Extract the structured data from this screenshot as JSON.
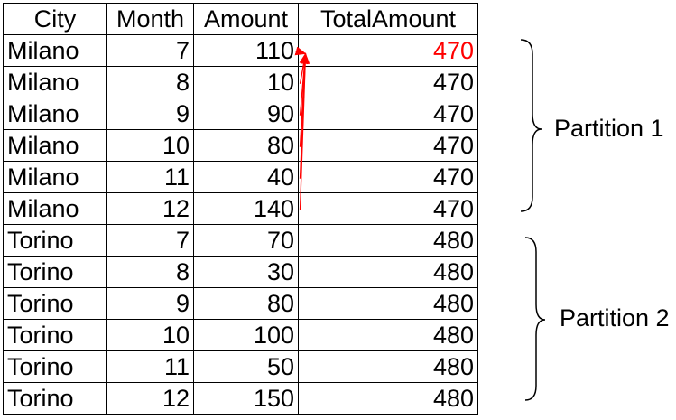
{
  "table": {
    "headers": {
      "city": "City",
      "month": "Month",
      "amount": "Amount",
      "total_amount": "TotalAmount"
    },
    "rows": [
      {
        "city": "Milano",
        "month": "7",
        "amount": "110",
        "total_amount": "470"
      },
      {
        "city": "Milano",
        "month": "8",
        "amount": "10",
        "total_amount": "470"
      },
      {
        "city": "Milano",
        "month": "9",
        "amount": "90",
        "total_amount": "470"
      },
      {
        "city": "Milano",
        "month": "10",
        "amount": "80",
        "total_amount": "470"
      },
      {
        "city": "Milano",
        "month": "11",
        "amount": "40",
        "total_amount": "470"
      },
      {
        "city": "Milano",
        "month": "12",
        "amount": "140",
        "total_amount": "470"
      },
      {
        "city": "Torino",
        "month": "7",
        "amount": "70",
        "total_amount": "480"
      },
      {
        "city": "Torino",
        "month": "8",
        "amount": "30",
        "total_amount": "480"
      },
      {
        "city": "Torino",
        "month": "9",
        "amount": "80",
        "total_amount": "480"
      },
      {
        "city": "Torino",
        "month": "10",
        "amount": "100",
        "total_amount": "480"
      },
      {
        "city": "Torino",
        "month": "11",
        "amount": "50",
        "total_amount": "480"
      },
      {
        "city": "Torino",
        "month": "12",
        "amount": "150",
        "total_amount": "480"
      }
    ]
  },
  "partitions": [
    {
      "label": "Partition 1"
    },
    {
      "label": "Partition 2"
    }
  ],
  "colors": {
    "arrow": "#ff0000",
    "highlight_text": "#ff0000",
    "text": "#000000",
    "border": "#000000"
  }
}
